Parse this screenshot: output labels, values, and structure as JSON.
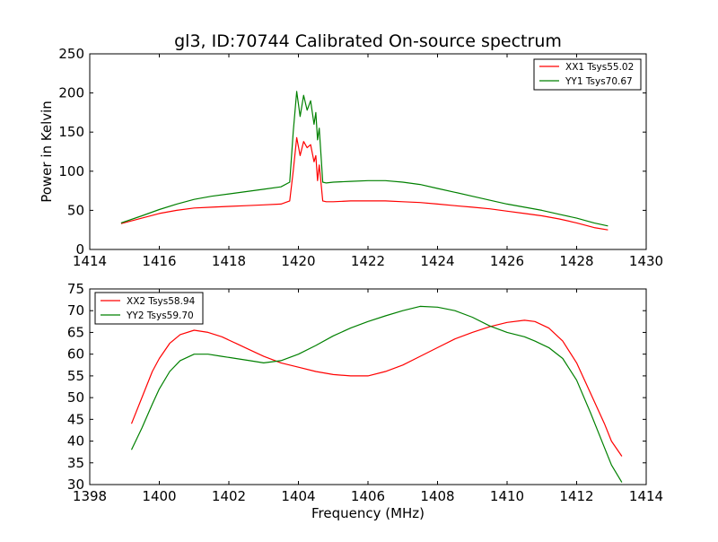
{
  "chart_data": [
    {
      "type": "line",
      "title": "gl3, ID:70744 Calibrated On-source spectrum",
      "xlabel": "",
      "ylabel": "Power in Kelvin",
      "xlim": [
        1414,
        1430
      ],
      "ylim": [
        0,
        250
      ],
      "x_ticks": [
        "1414",
        "1416",
        "1418",
        "1420",
        "1422",
        "1424",
        "1426",
        "1428",
        "1430"
      ],
      "y_ticks": [
        "0",
        "50",
        "100",
        "150",
        "200",
        "250"
      ],
      "grid": false,
      "legend_position": "top-right",
      "series": [
        {
          "name": "XX1 Tsys55.02",
          "color": "#ff0000",
          "x": [
            1414.9,
            1415.5,
            1416.0,
            1416.5,
            1417.0,
            1417.5,
            1418.0,
            1418.5,
            1419.0,
            1419.5,
            1419.75,
            1419.85,
            1419.95,
            1420.05,
            1420.15,
            1420.25,
            1420.35,
            1420.45,
            1420.5,
            1420.55,
            1420.6,
            1420.65,
            1420.7,
            1420.8,
            1421.0,
            1421.5,
            1422.0,
            1422.5,
            1423.0,
            1423.5,
            1424.0,
            1424.5,
            1425.0,
            1425.5,
            1426.0,
            1426.5,
            1427.0,
            1427.5,
            1428.0,
            1428.5,
            1428.9
          ],
          "values": [
            33,
            40,
            46,
            50,
            53,
            54,
            55,
            56,
            57,
            58,
            62,
            100,
            143,
            120,
            138,
            130,
            134,
            112,
            120,
            88,
            108,
            85,
            62,
            61,
            61,
            62,
            62,
            62,
            61,
            60,
            58,
            56,
            54,
            52,
            49,
            46,
            43,
            39,
            34,
            28,
            25
          ]
        },
        {
          "name": "YY1 Tsys70.67",
          "color": "#008000",
          "x": [
            1414.9,
            1415.5,
            1416.0,
            1416.5,
            1417.0,
            1417.5,
            1418.0,
            1418.5,
            1419.0,
            1419.5,
            1419.75,
            1419.85,
            1419.95,
            1420.05,
            1420.15,
            1420.25,
            1420.35,
            1420.45,
            1420.5,
            1420.55,
            1420.6,
            1420.65,
            1420.7,
            1420.8,
            1421.0,
            1421.5,
            1422.0,
            1422.5,
            1423.0,
            1423.5,
            1424.0,
            1424.5,
            1425.0,
            1425.5,
            1426.0,
            1426.5,
            1427.0,
            1427.5,
            1428.0,
            1428.5,
            1428.9
          ],
          "values": [
            34,
            43,
            51,
            58,
            64,
            68,
            71,
            74,
            77,
            80,
            86,
            150,
            202,
            170,
            197,
            178,
            190,
            160,
            175,
            140,
            155,
            120,
            86,
            85,
            86,
            87,
            88,
            88,
            86,
            83,
            78,
            73,
            68,
            63,
            58,
            54,
            50,
            45,
            40,
            34,
            30
          ]
        }
      ]
    },
    {
      "type": "line",
      "title": "",
      "xlabel": "Frequency (MHz)",
      "ylabel": "",
      "xlim": [
        1398,
        1414
      ],
      "ylim": [
        30,
        75
      ],
      "x_ticks": [
        "1398",
        "1400",
        "1402",
        "1404",
        "1406",
        "1408",
        "1410",
        "1412",
        "1414"
      ],
      "y_ticks": [
        "30",
        "35",
        "40",
        "45",
        "50",
        "55",
        "60",
        "65",
        "70",
        "75"
      ],
      "grid": false,
      "legend_position": "top-left",
      "series": [
        {
          "name": "XX2 Tsys58.94",
          "color": "#ff0000",
          "x": [
            1399.2,
            1399.5,
            1399.8,
            1400.0,
            1400.3,
            1400.6,
            1401.0,
            1401.4,
            1401.8,
            1402.2,
            1402.6,
            1403.0,
            1403.5,
            1404.0,
            1404.5,
            1405.0,
            1405.5,
            1406.0,
            1406.5,
            1407.0,
            1407.5,
            1408.0,
            1408.5,
            1409.0,
            1409.5,
            1410.0,
            1410.5,
            1410.8,
            1411.2,
            1411.6,
            1412.0,
            1412.4,
            1412.8,
            1413.0,
            1413.3
          ],
          "values": [
            44,
            50,
            56,
            59,
            62.5,
            64.5,
            65.5,
            65,
            64,
            62.5,
            61,
            59.5,
            58,
            57,
            56,
            55.3,
            55,
            55,
            56,
            57.5,
            59.5,
            61.5,
            63.5,
            65,
            66.3,
            67.3,
            67.8,
            67.5,
            66,
            63,
            58,
            51,
            44,
            40,
            36.5
          ]
        },
        {
          "name": "YY2 Tsys59.70",
          "color": "#008000",
          "x": [
            1399.2,
            1399.5,
            1399.8,
            1400.0,
            1400.3,
            1400.6,
            1401.0,
            1401.4,
            1401.8,
            1402.2,
            1402.6,
            1403.0,
            1403.5,
            1404.0,
            1404.5,
            1405.0,
            1405.5,
            1406.0,
            1406.5,
            1407.0,
            1407.5,
            1408.0,
            1408.5,
            1409.0,
            1409.5,
            1410.0,
            1410.5,
            1410.8,
            1411.2,
            1411.6,
            1412.0,
            1412.4,
            1412.8,
            1413.0,
            1413.3
          ],
          "values": [
            38,
            43,
            48.5,
            52,
            56,
            58.5,
            60,
            60,
            59.5,
            59,
            58.5,
            58,
            58.5,
            60,
            62,
            64.2,
            66,
            67.5,
            68.8,
            70,
            71,
            70.8,
            70,
            68.5,
            66.5,
            65,
            64,
            63,
            61.5,
            59,
            54,
            46.5,
            38.5,
            34.5,
            30.5
          ]
        }
      ]
    }
  ]
}
